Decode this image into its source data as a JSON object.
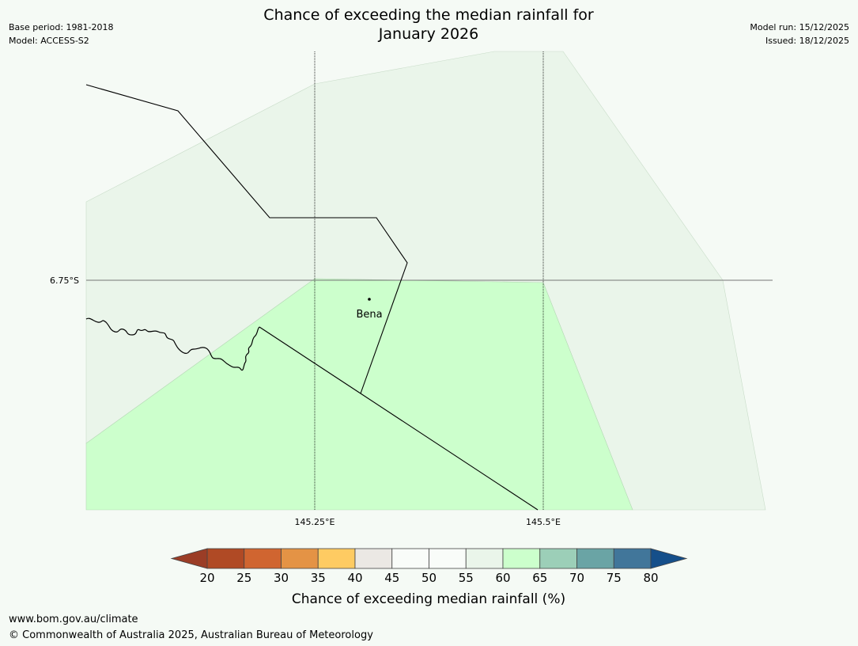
{
  "title": {
    "line1": "Chance of exceeding the median rainfall for",
    "line2": "January 2026"
  },
  "meta_left": {
    "base_period": "Base period: 1981-2018",
    "model": "Model: ACCESS-S2"
  },
  "meta_right": {
    "model_run": "Model run: 15/12/2025",
    "issued": "Issued: 18/12/2025"
  },
  "map": {
    "lat_label": "6.75°S",
    "lon_labels": [
      "145.25°E",
      "145.5°E"
    ],
    "place": {
      "name": "Bena"
    },
    "colors": {
      "pale_green": "#eaf5ea",
      "bright_green": "#ccffcc",
      "background": "#f5faf5"
    }
  },
  "colorbar": {
    "title": "Chance of exceeding median rainfall (%)",
    "ticks": [
      "20",
      "25",
      "30",
      "35",
      "40",
      "45",
      "50",
      "55",
      "60",
      "65",
      "70",
      "75",
      "80"
    ],
    "low_extend_color": "#9b3d26",
    "high_extend_color": "#154f8a",
    "colors": [
      "#b04a25",
      "#d06530",
      "#e49345",
      "#fecb62",
      "#ebe8e4",
      "#f9fcf9",
      "#f9fcf9",
      "#eaf5ea",
      "#ccffcc",
      "#9ccfb8",
      "#6aa4a5",
      "#41769a"
    ]
  },
  "footer": {
    "url": "www.bom.gov.au/climate",
    "copyright": "© Commonwealth of Australia 2025, Australian Bureau of Meteorology"
  }
}
